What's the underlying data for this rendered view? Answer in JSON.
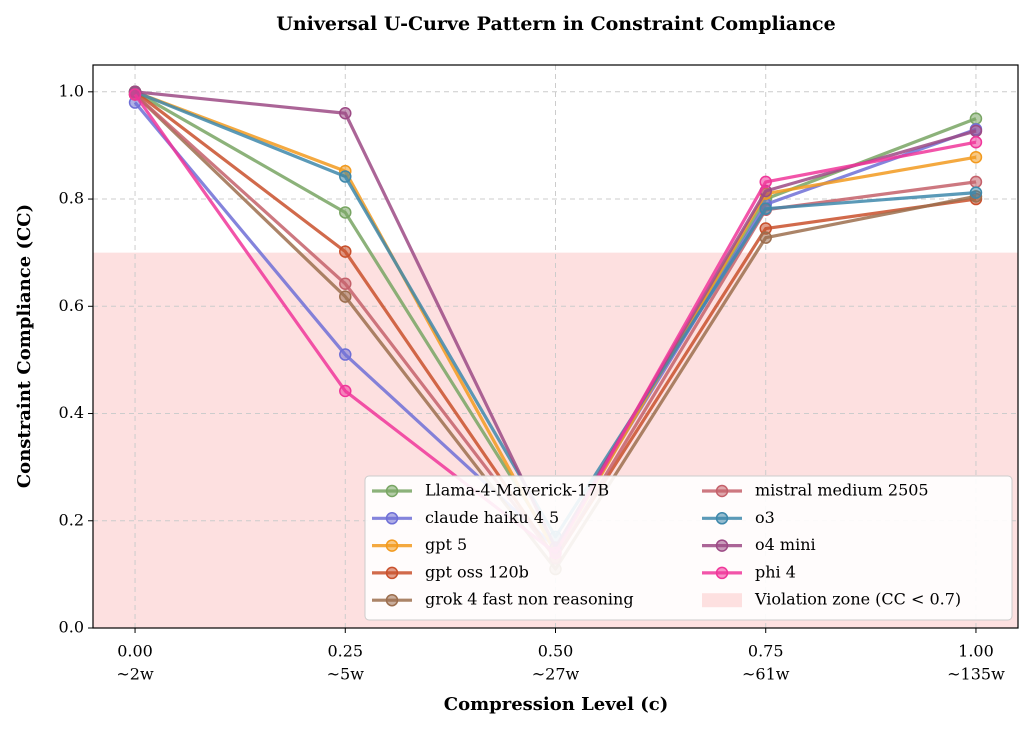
{
  "chart_data": {
    "type": "line",
    "title": "Universal U-Curve Pattern in Constraint Compliance",
    "x_label": "Compression Level (c)",
    "y_label": "Constraint Compliance (CC)",
    "x": [
      0,
      0.25,
      0.5,
      0.75,
      1.0
    ],
    "xlim": [
      -0.05,
      1.05
    ],
    "ylim": [
      0,
      1.05
    ],
    "xticks": [
      {
        "value": 0,
        "label": "0.00"
      },
      {
        "value": 0.25,
        "label": "0.25"
      },
      {
        "value": 0.5,
        "label": "0.50"
      },
      {
        "value": 0.75,
        "label": "0.75"
      },
      {
        "value": 1.0,
        "label": "1.00"
      }
    ],
    "xtick_sublabels": [
      "~2w",
      "~5w",
      "~27w",
      "~61w",
      "~135w"
    ],
    "yticks": [
      {
        "value": 0,
        "label": "0.0"
      },
      0.2,
      0.4,
      0.6,
      0.8,
      {
        "value": 1.0,
        "label": "1.0"
      }
    ],
    "grid": true,
    "legend_position": "lower right",
    "violation_zone": {
      "label": "Violation zone (CC < 0.7)",
      "ymax": 0.7,
      "color": "#fde0e0"
    },
    "series": [
      {
        "name": "Llama-4-Maverick-17B",
        "color": "#78a563",
        "values": [
          1.0,
          0.775,
          0.15,
          0.8,
          0.95
        ]
      },
      {
        "name": "claude haiku 4 5",
        "color": "#6f6fd6",
        "values": [
          0.98,
          0.51,
          0.15,
          0.79,
          0.93
        ]
      },
      {
        "name": "gpt 5",
        "color": "#f29a1e",
        "values": [
          1.0,
          0.852,
          0.14,
          0.81,
          0.878
        ]
      },
      {
        "name": "gpt oss 120b",
        "color": "#c9502c",
        "values": [
          1.0,
          0.702,
          0.13,
          0.745,
          0.8
        ]
      },
      {
        "name": "grok 4 fast non reasoning",
        "color": "#9c6e4e",
        "values": [
          0.995,
          0.618,
          0.11,
          0.728,
          0.805
        ]
      },
      {
        "name": "mistral medium 2505",
        "color": "#c4606a",
        "values": [
          0.995,
          0.642,
          0.13,
          0.78,
          0.832
        ]
      },
      {
        "name": "o3",
        "color": "#3e88ab",
        "values": [
          1.0,
          0.842,
          0.17,
          0.782,
          0.812
        ]
      },
      {
        "name": "o4 mini",
        "color": "#9c4a85",
        "values": [
          1.0,
          0.96,
          0.15,
          0.815,
          0.927
        ]
      },
      {
        "name": "phi 4",
        "color": "#f0369a",
        "values": [
          0.995,
          0.442,
          0.14,
          0.832,
          0.906
        ]
      }
    ]
  }
}
